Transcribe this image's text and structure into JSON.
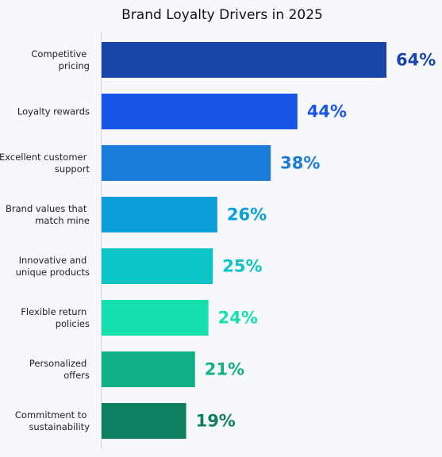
{
  "chart_data": {
    "type": "barh",
    "title": "Brand Loyalty Drivers in 2025",
    "categories": [
      "Competitive pricing",
      "Loyalty rewards",
      "Excellent customer support",
      "Brand values that match mine",
      "Innovative and unique products",
      "Flexible return policies",
      "Personalized offers",
      "Commitment to sustainability"
    ],
    "values": [
      64,
      44,
      38,
      26,
      25,
      24,
      21,
      19
    ],
    "value_labels": [
      "64%",
      "44%",
      "38%",
      "26%",
      "25%",
      "24%",
      "21%",
      "19%"
    ],
    "colors": [
      "#1a45a8",
      "#1a55ea",
      "#1b7bd9",
      "#0a9fd8",
      "#0cc3c6",
      "#16dfae",
      "#12b087",
      "#0e7f61"
    ]
  }
}
